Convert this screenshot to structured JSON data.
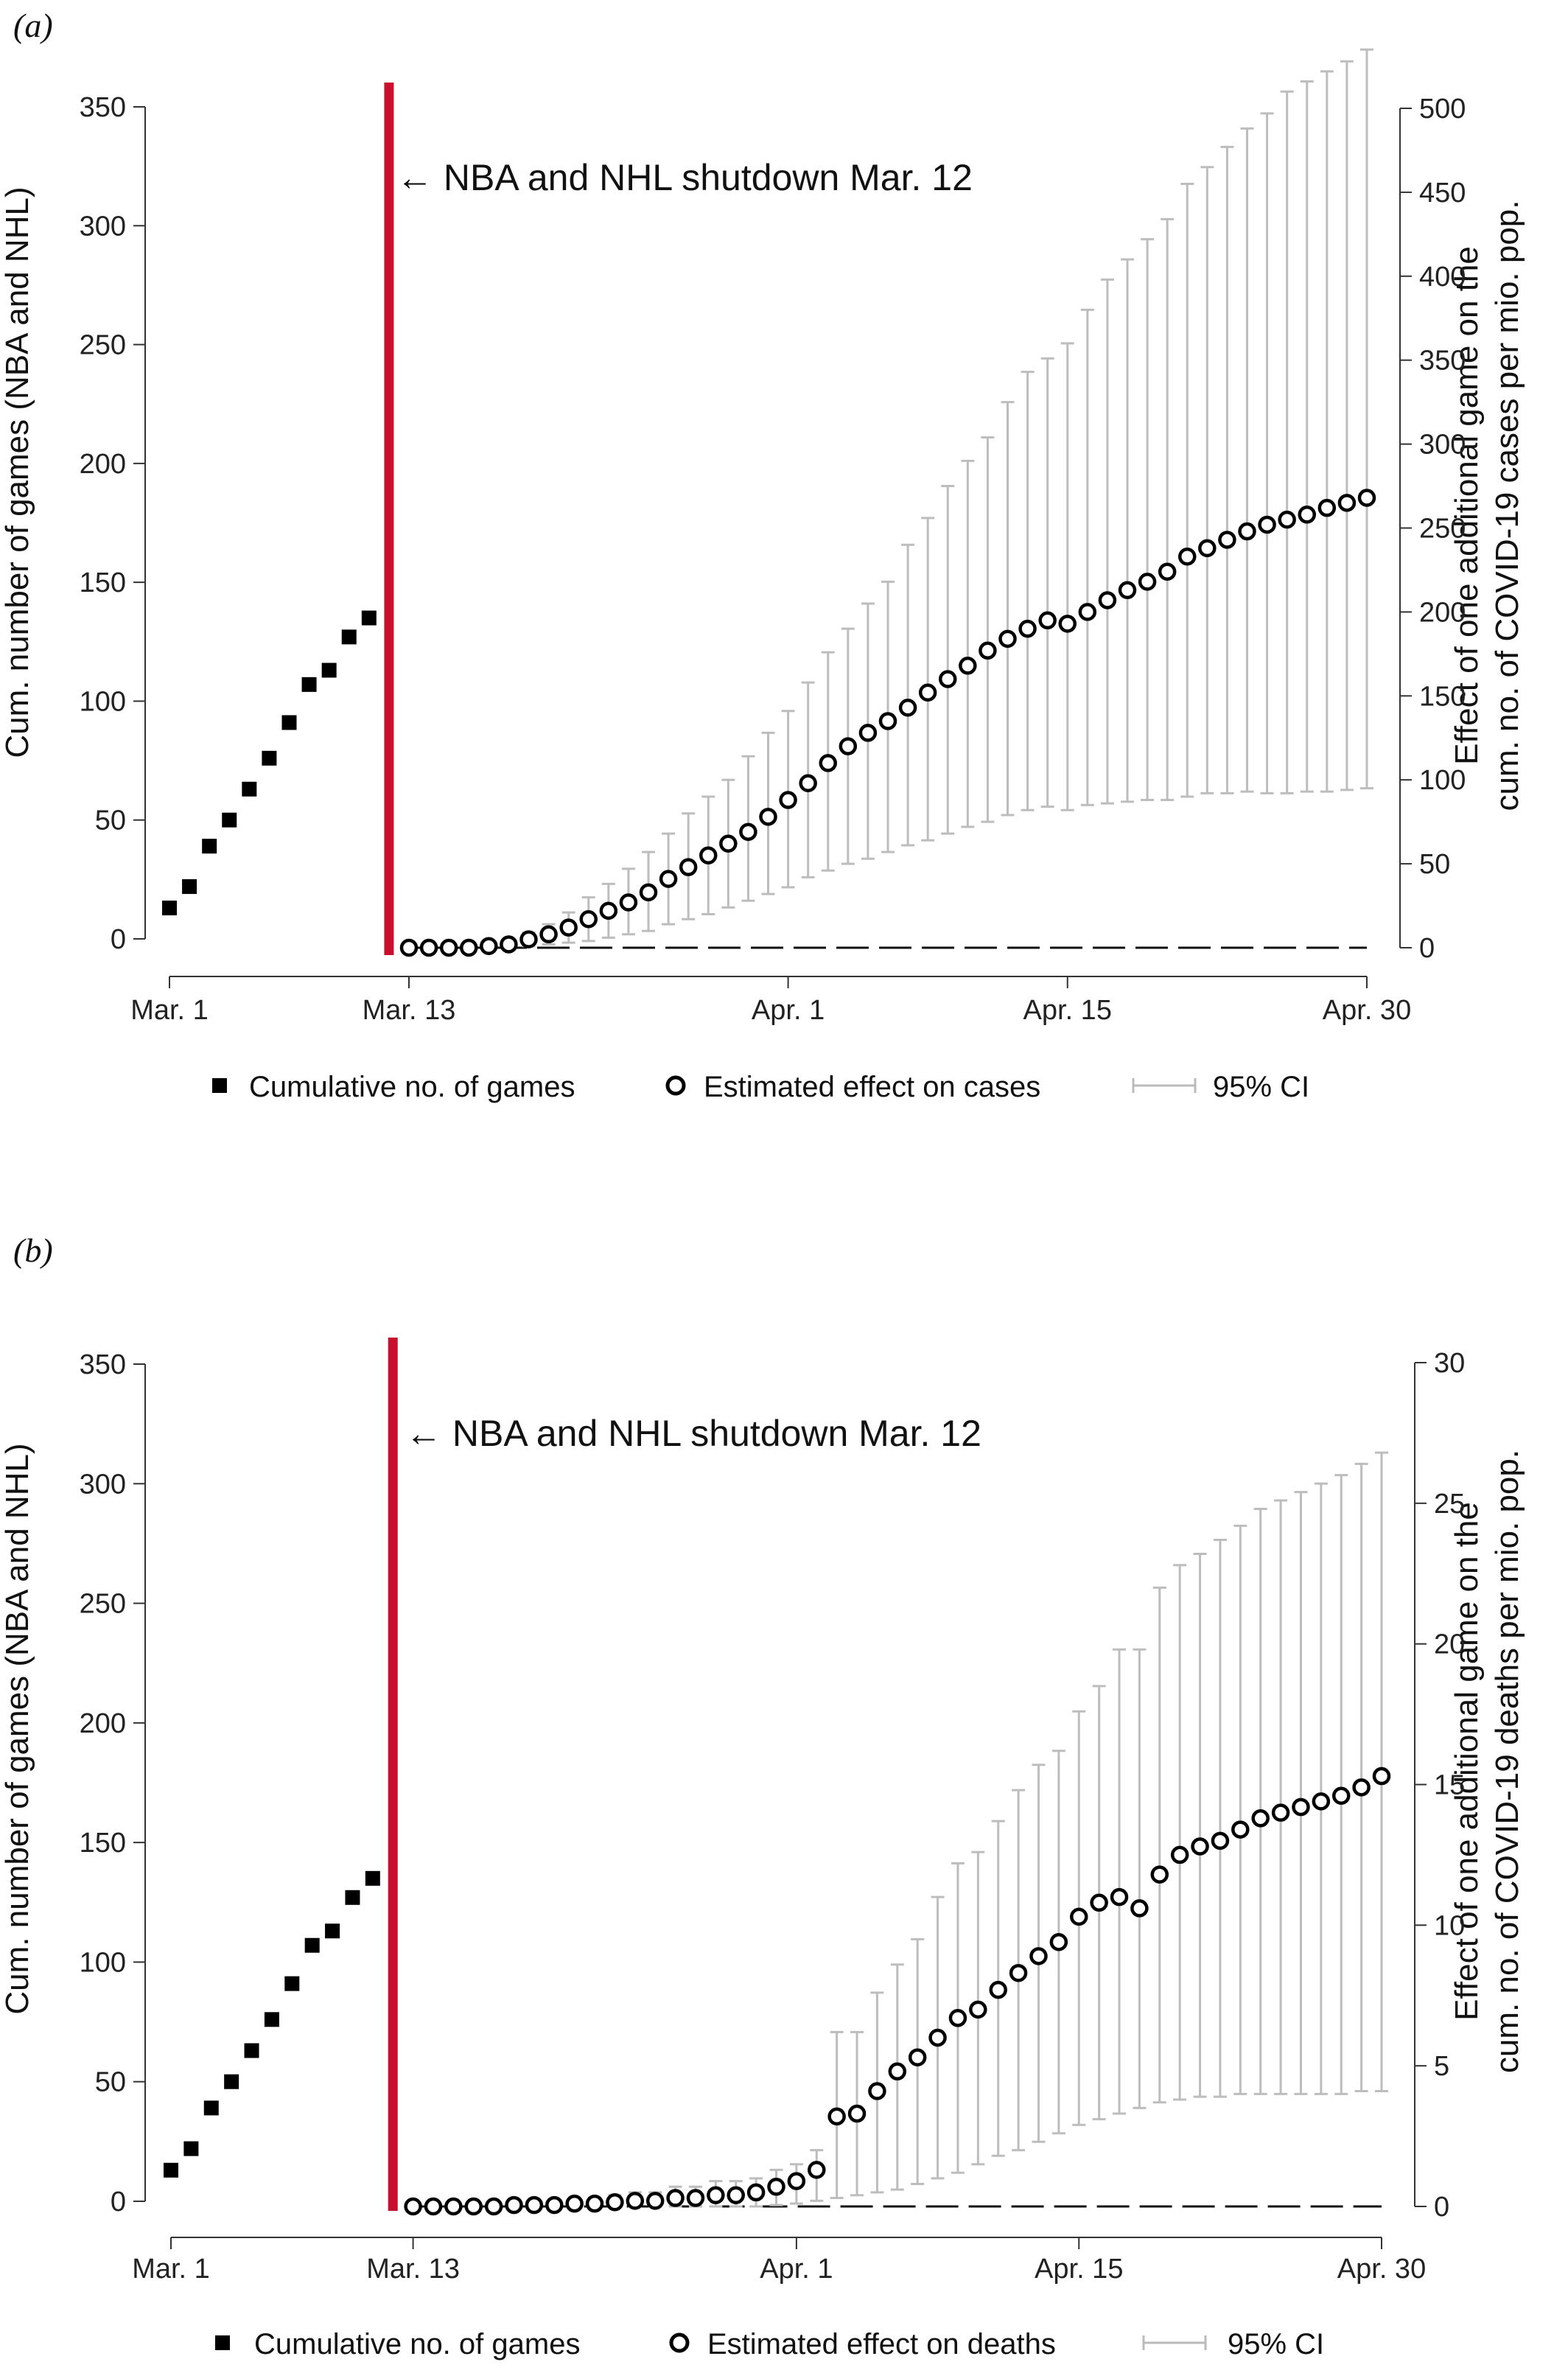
{
  "chart_data": [
    {
      "panel": "(a)",
      "type": "scatter",
      "x_ticks": [
        {
          "day": 1,
          "label": "Mar. 1"
        },
        {
          "day": 13,
          "label": "Mar. 13"
        },
        {
          "day": 32,
          "label": "Apr. 1"
        },
        {
          "day": 46,
          "label": "Apr. 15"
        },
        {
          "day": 61,
          "label": "Apr. 30"
        }
      ],
      "y_left": {
        "label": "Cum. number of games (NBA and NHL)",
        "ticks": [
          0,
          50,
          100,
          150,
          200,
          250,
          300,
          350
        ],
        "range": [
          0,
          350
        ]
      },
      "y_right": {
        "label_line1": "Effect of one additional game on the",
        "label_line2": "cum. no. of COVID-19 cases per mio. pop.",
        "ticks": [
          0,
          50,
          100,
          150,
          200,
          250,
          300,
          350,
          400,
          450,
          500
        ],
        "range": [
          0,
          500
        ]
      },
      "annotation": "← NBA and NHL shutdown Mar. 12",
      "shutdown_day": 12,
      "games": {
        "name": "Cumulative no. of games",
        "x": [
          1,
          2,
          3,
          4,
          5,
          6,
          7,
          8,
          9,
          10,
          11
        ],
        "values": [
          13,
          22,
          39,
          50,
          63,
          76,
          91,
          107,
          113,
          127,
          135
        ]
      },
      "effect": {
        "name": "Estimated effect on cases",
        "x": [
          13,
          14,
          15,
          16,
          17,
          18,
          19,
          20,
          21,
          22,
          23,
          24,
          25,
          26,
          27,
          28,
          29,
          30,
          31,
          32,
          33,
          34,
          35,
          36,
          37,
          38,
          39,
          40,
          41,
          42,
          43,
          44,
          45,
          46,
          47,
          48,
          49,
          50,
          51,
          52,
          53,
          54,
          55,
          56,
          57,
          58,
          59,
          60,
          61
        ],
        "values": [
          0,
          0,
          0,
          0,
          1,
          2,
          5,
          8,
          12,
          17,
          22,
          27,
          33,
          41,
          48,
          55,
          62,
          69,
          78,
          88,
          98,
          110,
          120,
          128,
          135,
          143,
          152,
          160,
          168,
          177,
          184,
          190,
          195,
          193,
          200,
          207,
          213,
          218,
          224,
          233,
          238,
          243,
          248,
          252,
          255,
          258,
          262,
          265,
          268
        ],
        "ci_low": [
          0,
          0,
          0,
          0,
          0,
          0,
          1,
          2,
          3,
          4,
          6,
          8,
          10,
          14,
          17,
          20,
          24,
          28,
          32,
          36,
          42,
          46,
          50,
          53,
          57,
          61,
          64,
          68,
          72,
          75,
          79,
          82,
          84,
          82,
          85,
          86,
          87,
          88,
          88,
          90,
          92,
          92,
          93,
          92,
          92,
          93,
          93,
          94,
          95
        ],
        "ci_high": [
          0,
          0,
          0,
          0,
          2,
          4,
          9,
          14,
          21,
          30,
          38,
          47,
          57,
          68,
          80,
          90,
          100,
          114,
          128,
          141,
          158,
          176,
          190,
          205,
          218,
          240,
          256,
          275,
          290,
          304,
          325,
          343,
          351,
          360,
          380,
          398,
          410,
          422,
          434,
          455,
          465,
          477,
          488,
          497,
          510,
          516,
          522,
          528,
          535
        ]
      },
      "ci_name": "95% CI"
    },
    {
      "panel": "(b)",
      "type": "scatter",
      "x_ticks": [
        {
          "day": 1,
          "label": "Mar. 1"
        },
        {
          "day": 13,
          "label": "Mar. 13"
        },
        {
          "day": 32,
          "label": "Apr. 1"
        },
        {
          "day": 46,
          "label": "Apr. 15"
        },
        {
          "day": 61,
          "label": "Apr. 30"
        }
      ],
      "y_left": {
        "label": "Cum. number of games (NBA and NHL)",
        "ticks": [
          0,
          50,
          100,
          150,
          200,
          250,
          300,
          350
        ],
        "range": [
          0,
          350
        ]
      },
      "y_right": {
        "label_line1": "Effect of one additional game on the",
        "label_line2": "cum. no. of COVID-19 deaths  per mio. pop.",
        "ticks": [
          0,
          5,
          10,
          15,
          20,
          25,
          30
        ],
        "range": [
          0,
          30
        ]
      },
      "annotation": "← NBA and NHL shutdown Mar. 12",
      "shutdown_day": 12,
      "games": {
        "name": "Cumulative no. of games",
        "x": [
          1,
          2,
          3,
          4,
          5,
          6,
          7,
          8,
          9,
          10,
          11
        ],
        "values": [
          13,
          22,
          39,
          50,
          63,
          76,
          91,
          107,
          113,
          127,
          135
        ]
      },
      "effect": {
        "name": "Estimated effect on deaths",
        "x": [
          13,
          14,
          15,
          16,
          17,
          18,
          19,
          20,
          21,
          22,
          23,
          24,
          25,
          26,
          27,
          28,
          29,
          30,
          31,
          32,
          33,
          34,
          35,
          36,
          37,
          38,
          39,
          40,
          41,
          42,
          43,
          44,
          45,
          46,
          47,
          48,
          49,
          50,
          51,
          52,
          53,
          54,
          55,
          56,
          57,
          58,
          59,
          60,
          61
        ],
        "values": [
          0,
          0,
          0,
          0,
          0,
          0.05,
          0.05,
          0.05,
          0.1,
          0.1,
          0.15,
          0.2,
          0.2,
          0.3,
          0.3,
          0.4,
          0.4,
          0.5,
          0.7,
          0.9,
          1.3,
          3.2,
          3.3,
          4.1,
          4.8,
          5.3,
          6.0,
          6.7,
          7.0,
          7.7,
          8.3,
          8.9,
          9.4,
          10.3,
          10.8,
          11.0,
          10.6,
          11.8,
          12.5,
          12.8,
          13.0,
          13.4,
          13.8,
          14.0,
          14.2,
          14.4,
          14.6,
          14.9,
          15.3
        ],
        "ci_low": [
          0,
          0,
          0,
          0,
          0,
          0,
          0,
          0,
          0,
          0,
          0,
          0,
          0,
          0,
          0,
          0,
          0,
          0,
          0.05,
          0.1,
          0.2,
          0.3,
          0.4,
          0.5,
          0.6,
          0.8,
          1.0,
          1.2,
          1.5,
          1.8,
          2.0,
          2.3,
          2.6,
          2.9,
          3.1,
          3.3,
          3.5,
          3.7,
          3.8,
          3.9,
          3.9,
          4.0,
          4.0,
          4.0,
          4.0,
          4.0,
          4.0,
          4.1,
          4.1
        ],
        "ci_high": [
          0,
          0,
          0,
          0,
          0,
          0.1,
          0.1,
          0.1,
          0.2,
          0.3,
          0.4,
          0.5,
          0.5,
          0.7,
          0.7,
          0.9,
          0.9,
          1.0,
          1.3,
          1.5,
          2.0,
          6.2,
          6.2,
          7.6,
          8.6,
          9.5,
          11.0,
          12.2,
          12.6,
          13.7,
          14.8,
          15.7,
          16.2,
          17.6,
          18.5,
          19.8,
          19.8,
          22.0,
          22.8,
          23.2,
          23.7,
          24.2,
          24.8,
          25.1,
          25.4,
          25.7,
          26.0,
          26.4,
          26.8
        ]
      },
      "ci_name": "95% CI"
    }
  ]
}
